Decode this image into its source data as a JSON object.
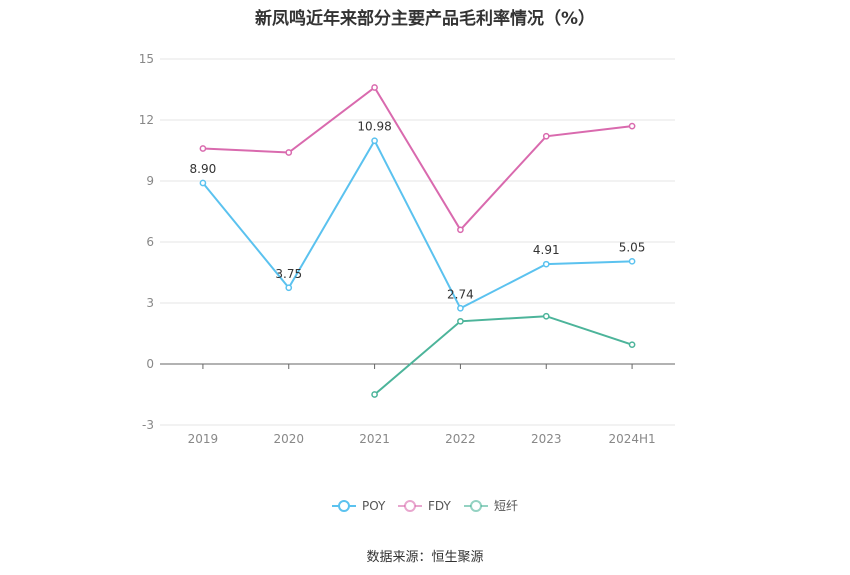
{
  "chart_data": {
    "type": "line",
    "title": "新凤鸣近年来部分主要产品毛利率情况（%）",
    "categories": [
      "2019",
      "2020",
      "2021",
      "2022",
      "2023",
      "2024H1"
    ],
    "ylim": [
      -3,
      15
    ],
    "yticks": [
      -3,
      0,
      3,
      6,
      9,
      12,
      15
    ],
    "grid": true,
    "legend_position": "bottom",
    "series": [
      {
        "name": "POY",
        "color": "#5bc2ef",
        "values": [
          8.9,
          3.75,
          10.98,
          2.74,
          4.91,
          5.05
        ],
        "labels": [
          "8.90",
          "3.75",
          "10.98",
          "2.74",
          "4.91",
          "5.05"
        ]
      },
      {
        "name": "FDY",
        "color": "#d96aae",
        "values": [
          10.6,
          10.4,
          13.6,
          6.6,
          11.2,
          11.7
        ],
        "labels": []
      },
      {
        "name": "短纤",
        "color": "#4cb49a",
        "values": [
          null,
          null,
          -1.5,
          2.1,
          2.35,
          0.95
        ],
        "labels": []
      }
    ]
  },
  "source": "数据来源：恒生聚源"
}
